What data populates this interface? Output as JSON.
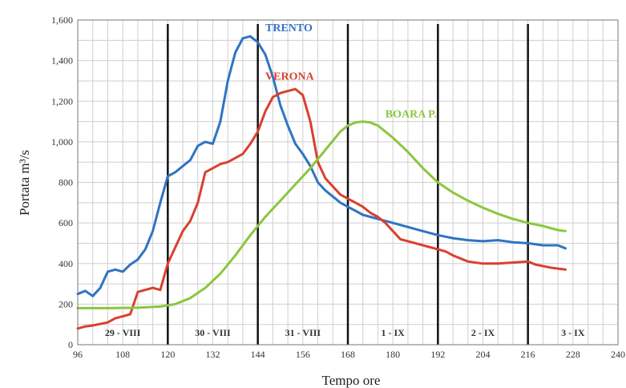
{
  "chart_data": {
    "type": "line",
    "xlabel": "Tempo ore",
    "ylabel": "Portata m³/s",
    "xlim": [
      96,
      240
    ],
    "ylim": [
      0,
      1600
    ],
    "x_ticks": [
      96,
      108,
      120,
      132,
      144,
      156,
      168,
      180,
      192,
      204,
      216,
      228,
      240
    ],
    "y_ticks": [
      {
        "v": 0,
        "label": "0"
      },
      {
        "v": 200,
        "label": "200"
      },
      {
        "v": 400,
        "label": "400"
      },
      {
        "v": 600,
        "label": "600"
      },
      {
        "v": 800,
        "label": "800"
      },
      {
        "v": 1000,
        "label": "1,000"
      },
      {
        "v": 1200,
        "label": "1,200"
      },
      {
        "v": 1400,
        "label": "1,400"
      },
      {
        "v": 1600,
        "label": "1,600"
      }
    ],
    "grid": true,
    "day_lines": [
      120,
      144,
      168,
      192,
      216
    ],
    "day_labels": [
      {
        "text": "29 - VIII",
        "x": 108
      },
      {
        "text": "30 - VIII",
        "x": 132
      },
      {
        "text": "31 - VIII",
        "x": 156
      },
      {
        "text": "1 - IX",
        "x": 180
      },
      {
        "text": "2 - IX",
        "x": 204
      },
      {
        "text": "3 - IX",
        "x": 228
      }
    ],
    "series": [
      {
        "name": "TRENTO",
        "color": "#2f74c4",
        "label_at": [
          146,
          1545
        ],
        "points": [
          [
            96,
            250
          ],
          [
            98,
            265
          ],
          [
            100,
            240
          ],
          [
            102,
            280
          ],
          [
            104,
            360
          ],
          [
            106,
            370
          ],
          [
            108,
            360
          ],
          [
            110,
            395
          ],
          [
            112,
            420
          ],
          [
            114,
            470
          ],
          [
            116,
            560
          ],
          [
            118,
            700
          ],
          [
            120,
            830
          ],
          [
            122,
            850
          ],
          [
            124,
            880
          ],
          [
            126,
            910
          ],
          [
            128,
            980
          ],
          [
            130,
            1000
          ],
          [
            132,
            990
          ],
          [
            134,
            1100
          ],
          [
            136,
            1300
          ],
          [
            138,
            1440
          ],
          [
            140,
            1510
          ],
          [
            142,
            1520
          ],
          [
            144,
            1490
          ],
          [
            146,
            1430
          ],
          [
            148,
            1320
          ],
          [
            150,
            1180
          ],
          [
            152,
            1080
          ],
          [
            154,
            990
          ],
          [
            156,
            940
          ],
          [
            158,
            880
          ],
          [
            160,
            800
          ],
          [
            162,
            760
          ],
          [
            164,
            730
          ],
          [
            166,
            700
          ],
          [
            168,
            680
          ],
          [
            170,
            660
          ],
          [
            172,
            640
          ],
          [
            174,
            630
          ],
          [
            176,
            620
          ],
          [
            178,
            610
          ],
          [
            180,
            600
          ],
          [
            184,
            580
          ],
          [
            188,
            560
          ],
          [
            192,
            540
          ],
          [
            196,
            525
          ],
          [
            200,
            515
          ],
          [
            204,
            510
          ],
          [
            208,
            515
          ],
          [
            212,
            505
          ],
          [
            216,
            500
          ],
          [
            220,
            490
          ],
          [
            224,
            490
          ],
          [
            226,
            475
          ]
        ]
      },
      {
        "name": "VERONA",
        "color": "#d9402f",
        "label_at": [
          146,
          1305
        ],
        "points": [
          [
            96,
            80
          ],
          [
            98,
            90
          ],
          [
            100,
            95
          ],
          [
            104,
            110
          ],
          [
            106,
            130
          ],
          [
            108,
            140
          ],
          [
            110,
            150
          ],
          [
            112,
            260
          ],
          [
            116,
            280
          ],
          [
            118,
            270
          ],
          [
            120,
            400
          ],
          [
            122,
            480
          ],
          [
            124,
            560
          ],
          [
            126,
            610
          ],
          [
            128,
            700
          ],
          [
            130,
            850
          ],
          [
            132,
            870
          ],
          [
            134,
            890
          ],
          [
            136,
            900
          ],
          [
            138,
            920
          ],
          [
            140,
            940
          ],
          [
            142,
            990
          ],
          [
            144,
            1050
          ],
          [
            146,
            1150
          ],
          [
            148,
            1220
          ],
          [
            150,
            1240
          ],
          [
            152,
            1250
          ],
          [
            154,
            1260
          ],
          [
            156,
            1230
          ],
          [
            158,
            1100
          ],
          [
            160,
            900
          ],
          [
            162,
            820
          ],
          [
            164,
            780
          ],
          [
            166,
            740
          ],
          [
            168,
            720
          ],
          [
            170,
            700
          ],
          [
            172,
            680
          ],
          [
            174,
            650
          ],
          [
            176,
            630
          ],
          [
            178,
            600
          ],
          [
            180,
            560
          ],
          [
            182,
            520
          ],
          [
            186,
            500
          ],
          [
            190,
            480
          ],
          [
            194,
            460
          ],
          [
            196,
            440
          ],
          [
            200,
            410
          ],
          [
            204,
            400
          ],
          [
            208,
            400
          ],
          [
            212,
            405
          ],
          [
            216,
            410
          ],
          [
            218,
            395
          ],
          [
            222,
            380
          ],
          [
            224,
            375
          ],
          [
            226,
            370
          ]
        ]
      },
      {
        "name": "BOARA P.",
        "color": "#8cc63f",
        "label_at": [
          178,
          1120
        ],
        "points": [
          [
            96,
            180
          ],
          [
            104,
            180
          ],
          [
            112,
            182
          ],
          [
            118,
            188
          ],
          [
            122,
            200
          ],
          [
            126,
            230
          ],
          [
            130,
            280
          ],
          [
            134,
            350
          ],
          [
            138,
            440
          ],
          [
            142,
            540
          ],
          [
            146,
            630
          ],
          [
            150,
            710
          ],
          [
            154,
            790
          ],
          [
            158,
            870
          ],
          [
            162,
            960
          ],
          [
            166,
            1050
          ],
          [
            168,
            1080
          ],
          [
            170,
            1095
          ],
          [
            172,
            1100
          ],
          [
            174,
            1095
          ],
          [
            176,
            1080
          ],
          [
            180,
            1020
          ],
          [
            184,
            950
          ],
          [
            188,
            870
          ],
          [
            192,
            800
          ],
          [
            196,
            750
          ],
          [
            200,
            710
          ],
          [
            204,
            675
          ],
          [
            208,
            645
          ],
          [
            212,
            620
          ],
          [
            216,
            600
          ],
          [
            220,
            585
          ],
          [
            224,
            565
          ],
          [
            226,
            560
          ]
        ]
      }
    ]
  }
}
